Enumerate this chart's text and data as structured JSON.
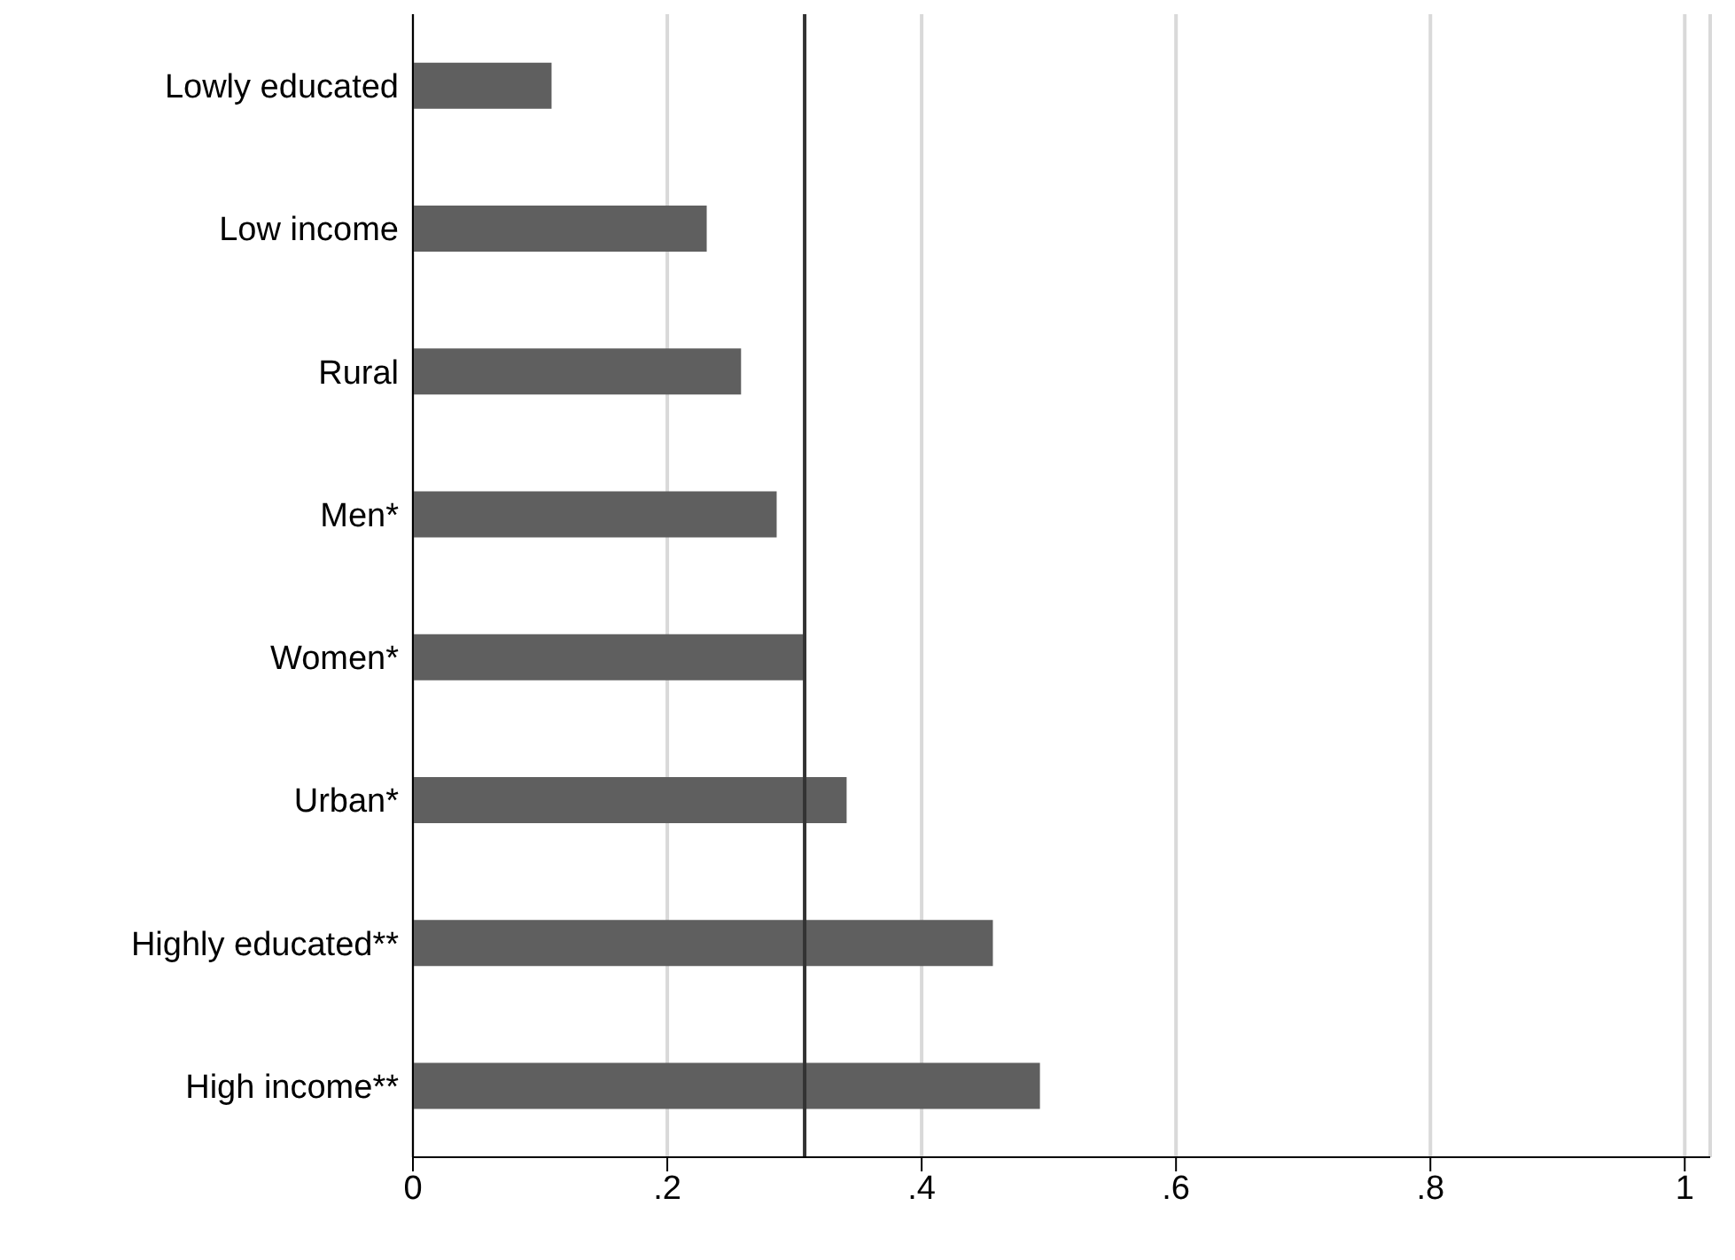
{
  "chart_data": {
    "type": "bar",
    "orientation": "horizontal",
    "categories": [
      "Lowly educated",
      "Low income",
      "Rural",
      "Men*",
      "Women*",
      "Urban*",
      "Highly educated**",
      "High income**"
    ],
    "values": [
      0.109,
      0.231,
      0.258,
      0.286,
      0.308,
      0.341,
      0.456,
      0.493
    ],
    "color": "#5f5f5f",
    "xlim": [
      0,
      1.02
    ],
    "xticks": [
      0,
      {
        "value": 0.2,
        "label": ".2"
      },
      {
        "value": 0.4,
        "label": ".4"
      },
      {
        "value": 0.6,
        "label": ".6"
      },
      {
        "value": 0.8,
        "label": ".8"
      },
      1
    ],
    "ref_lines": [
      {
        "axis": "x",
        "value": 0.308,
        "color": "#333333"
      }
    ],
    "grid": "x"
  }
}
